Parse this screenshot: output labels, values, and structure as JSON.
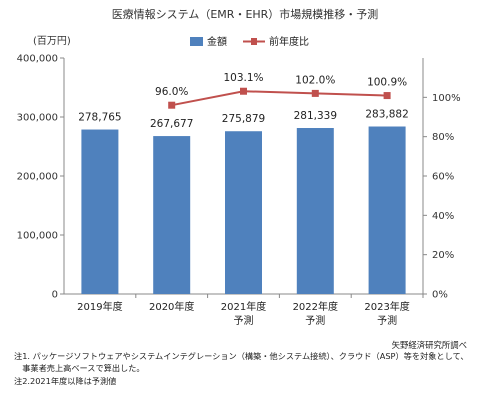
{
  "chart_data": {
    "type": "bar",
    "title": "医療情報システム（EMR・EHR）市場規模推移・予測",
    "y_unit_label": "(百万円)",
    "categories": [
      "2019年度",
      "2020年度",
      "2021年度",
      "2022年度",
      "2023年度"
    ],
    "category_sublabels": [
      "",
      "",
      "予測",
      "予測",
      "予測"
    ],
    "ylim": [
      0,
      400000
    ],
    "y_ticks": [
      "0",
      "100,000",
      "200,000",
      "300,000",
      "400,000"
    ],
    "y2lim": [
      0,
      120
    ],
    "y2_ticks": [
      "0%",
      "20%",
      "40%",
      "60%",
      "80%",
      "100%"
    ],
    "grid": false,
    "legend_position": "top-center",
    "series": [
      {
        "name": "金額",
        "type": "bar",
        "axis": "left",
        "color": "#4f81bd",
        "values": [
          278765,
          267677,
          275879,
          281339,
          283882
        ],
        "labels": [
          "278,765",
          "267,677",
          "275,879",
          "281,339",
          "283,882"
        ]
      },
      {
        "name": "前年度比",
        "type": "line",
        "axis": "right",
        "color": "#c0504d",
        "values": [
          null,
          96.0,
          103.1,
          102.0,
          100.9
        ],
        "labels": [
          "",
          "96.0%",
          "103.1%",
          "102.0%",
          "100.9%"
        ]
      }
    ]
  },
  "source_text": "矢野経済研究所調べ",
  "notes": [
    "注1. パッケージソフトウェアやシステムインテグレーション（構築・他システム接続）、クラウド（ASP）等を対象として、",
    "　事業者売上高ベースで算出した。",
    "注2.2021年度以降は予測値"
  ]
}
